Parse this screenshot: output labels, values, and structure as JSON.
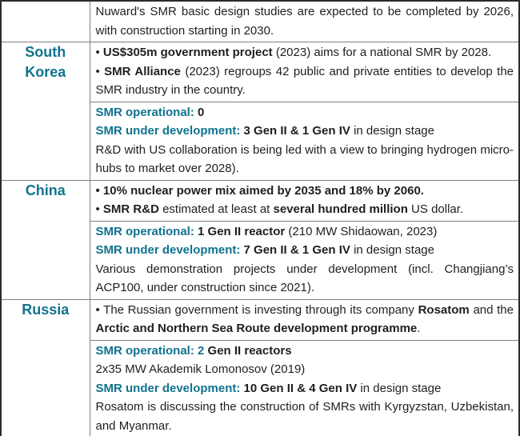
{
  "colors": {
    "label_teal": "#10738f",
    "body_text": "#1f1f1f",
    "inner_border": "#7f7f7f",
    "outer_border": "#2b2b2b",
    "background": "#ffffff"
  },
  "rows": [
    {
      "country": "",
      "cells": [
        {
          "paragraphs": [
            [
              {
                "t": "Nuward's SMR basic design studies are expected to be completed by 2026, with construction starting in 2030.",
                "s": "r"
              }
            ]
          ]
        }
      ]
    },
    {
      "country": "South Korea",
      "cells": [
        {
          "paragraphs": [
            [
              {
                "t": "• ",
                "s": "r"
              },
              {
                "t": "US$305m government project",
                "s": "b"
              },
              {
                "t": " (2023) aims for a national SMR by 2028.",
                "s": "r"
              }
            ],
            [
              {
                "t": "• ",
                "s": "r"
              },
              {
                "t": "SMR Alliance",
                "s": "b"
              },
              {
                "t": " (2023) regroups 42 public and private entities to develop the SMR industry in the country.",
                "s": "r"
              }
            ]
          ]
        },
        {
          "paragraphs": [
            [
              {
                "t": "SMR operational: ",
                "s": "l"
              },
              {
                "t": "0",
                "s": "b"
              }
            ],
            [
              {
                "t": "SMR under development: ",
                "s": "l"
              },
              {
                "t": "3 Gen II & 1 Gen IV",
                "s": "b"
              },
              {
                "t": " in design stage",
                "s": "r"
              }
            ],
            [
              {
                "t": "R&D with US collaboration is being led with a view to bringing hydrogen micro-hubs to market over 2028).",
                "s": "r"
              }
            ]
          ]
        }
      ]
    },
    {
      "country": "China",
      "cells": [
        {
          "paragraphs": [
            [
              {
                "t": "• 10% nuclear power mix aimed by 2035 and 18% by 2060.",
                "s": "b"
              }
            ],
            [
              {
                "t": "• ",
                "s": "r"
              },
              {
                "t": "SMR R&D",
                "s": "b"
              },
              {
                "t": " estimated at least at ",
                "s": "r"
              },
              {
                "t": "several hundred million",
                "s": "b"
              },
              {
                "t": " US dollar.",
                "s": "r"
              }
            ]
          ]
        },
        {
          "paragraphs": [
            [
              {
                "t": "SMR operational: ",
                "s": "l"
              },
              {
                "t": "1 Gen II reactor",
                "s": "b"
              },
              {
                "t": " (210 MW Shidaowan, 2023)",
                "s": "r"
              }
            ],
            [
              {
                "t": "SMR under development: ",
                "s": "l"
              },
              {
                "t": "7 Gen II & 1 Gen IV",
                "s": "b"
              },
              {
                "t": " in design stage",
                "s": "r"
              }
            ],
            [
              {
                "t": "Various demonstration projects under development (incl. Changjiang’s ACP100, under construction since 2021).",
                "s": "r"
              }
            ]
          ]
        }
      ]
    },
    {
      "country": "Russia",
      "cells": [
        {
          "paragraphs": [
            [
              {
                "t": "• The Russian government is investing through its company ",
                "s": "r"
              },
              {
                "t": "Rosatom",
                "s": "b"
              },
              {
                "t": " and the ",
                "s": "r"
              },
              {
                "t": "Arctic and Northern Sea Route development programme",
                "s": "b"
              },
              {
                "t": ".",
                "s": "r"
              }
            ]
          ]
        },
        {
          "paragraphs": [
            [
              {
                "t": "SMR operational: 2 ",
                "s": "l"
              },
              {
                "t": "Gen II reactors",
                "s": "b"
              }
            ],
            [
              {
                "t": "2x35 MW Akademik Lomonosov (2019)",
                "s": "r"
              }
            ],
            [
              {
                "t": "SMR under development: ",
                "s": "l"
              },
              {
                "t": "10 Gen II & 4 Gen IV",
                "s": "b"
              },
              {
                "t": " in design stage",
                "s": "r"
              }
            ],
            [
              {
                "t": "Rosatom is discussing the construction of SMRs with Kyrgyzstan, Uzbekistan, and Myanmar.",
                "s": "r"
              }
            ]
          ]
        }
      ]
    }
  ]
}
